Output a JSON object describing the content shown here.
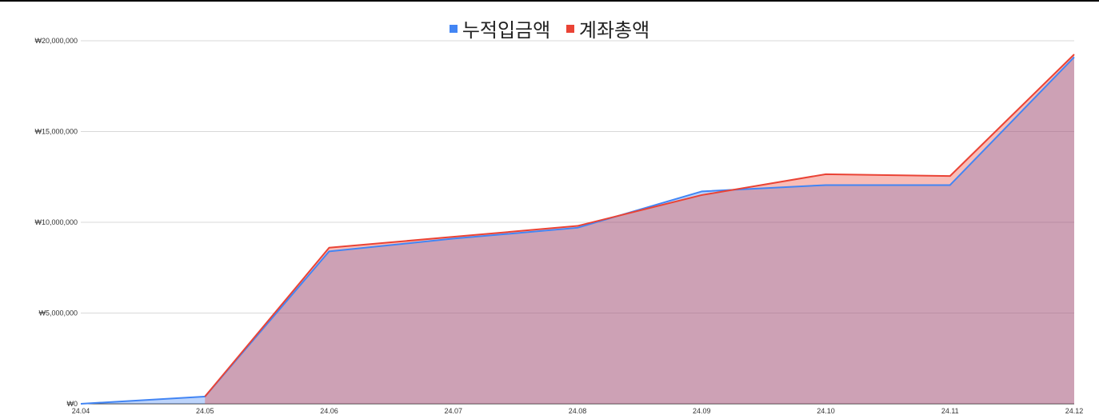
{
  "chart_data": {
    "type": "area",
    "title": "",
    "xlabel": "",
    "ylabel": "",
    "categories": [
      "24.04",
      "24.05",
      "24.06",
      "24.07",
      "24.08",
      "24.09",
      "24.10",
      "24.11",
      "24.12"
    ],
    "ylim": [
      0,
      20000000
    ],
    "y_ticks": [
      0,
      5000000,
      10000000,
      15000000,
      20000000
    ],
    "y_tick_labels": [
      "₩0",
      "₩5,000,000",
      "₩10,000,000",
      "₩15,000,000",
      "₩20,000,000"
    ],
    "legend_position": "top",
    "grid": true,
    "series": [
      {
        "name": "누적입금액",
        "color": "#4285f4",
        "values": [
          0,
          400000,
          8400000,
          9100000,
          9700000,
          11700000,
          12050000,
          12050000,
          19100000
        ]
      },
      {
        "name": "계좌총액",
        "color": "#ea4335",
        "values": [
          null,
          400000,
          8600000,
          9200000,
          9800000,
          11500000,
          12650000,
          12550000,
          19250000
        ]
      }
    ]
  }
}
